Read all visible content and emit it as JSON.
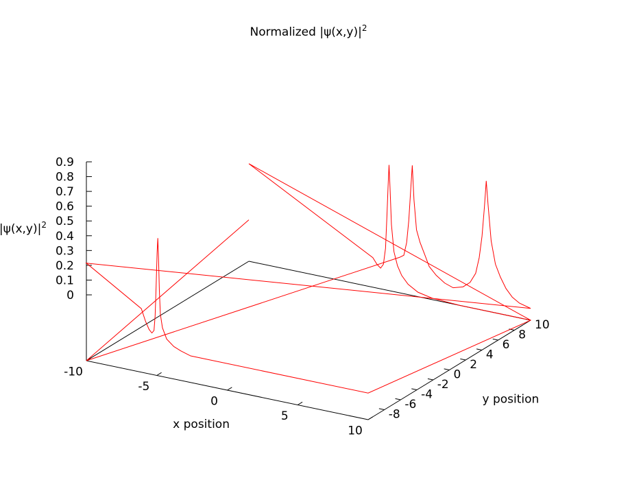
{
  "chart_data": {
    "type": "line",
    "title": {
      "main": "Normalized |ψ(x,y)|",
      "sup": "2"
    },
    "xlabel": "x position",
    "ylabel": "y position",
    "zlabel": {
      "main": "|ψ(x,y)|",
      "sup": "2"
    },
    "xlim": [
      -10,
      10
    ],
    "ylim": [
      -10,
      10
    ],
    "zlim": [
      0,
      0.9
    ],
    "x_ticks": [
      {
        "value": -10,
        "label": "-10"
      },
      {
        "value": -5,
        "label": "-5"
      },
      {
        "value": 0,
        "label": "0"
      },
      {
        "value": 5,
        "label": "5"
      },
      {
        "value": 10,
        "label": "10"
      }
    ],
    "y_ticks": [
      {
        "value": -8,
        "label": "-8"
      },
      {
        "value": -6,
        "label": "-6"
      },
      {
        "value": -4,
        "label": "-4"
      },
      {
        "value": -2,
        "label": "-2"
      },
      {
        "value": 0,
        "label": "0"
      },
      {
        "value": 2,
        "label": "2"
      },
      {
        "value": 4,
        "label": "4"
      },
      {
        "value": 6,
        "label": "6"
      },
      {
        "value": 8,
        "label": "8"
      },
      {
        "value": 10,
        "label": "10"
      }
    ],
    "z_ticks": [
      {
        "value": 0,
        "label": "0"
      },
      {
        "value": 0.1,
        "label": "0.1"
      },
      {
        "value": 0.2,
        "label": "0.2"
      },
      {
        "value": 0.3,
        "label": "0.3"
      },
      {
        "value": 0.4,
        "label": "0.4"
      },
      {
        "value": 0.5,
        "label": "0.5"
      },
      {
        "value": 0.6,
        "label": "0.6"
      },
      {
        "value": 0.7,
        "label": "0.7"
      },
      {
        "value": 0.8,
        "label": "0.8"
      },
      {
        "value": 0.9,
        "label": "0.9"
      }
    ],
    "grid": false,
    "series_color": "#ff0000",
    "series": [
      {
        "points": [
          [
            -10,
            10,
            0.28
          ],
          [
            -10,
            -10,
            0.0
          ],
          [
            0.7,
            10,
            0.24
          ],
          [
            1.0,
            10,
            0.26
          ],
          [
            1.2,
            10,
            0.35
          ],
          [
            1.35,
            10,
            0.5
          ],
          [
            1.48,
            10,
            0.7
          ],
          [
            1.6,
            10,
            0.88
          ],
          [
            1.72,
            10,
            0.65
          ],
          [
            1.9,
            10,
            0.45
          ],
          [
            2.15,
            10,
            0.37
          ],
          [
            2.5,
            10,
            0.29
          ],
          [
            2.8,
            10,
            0.22
          ],
          [
            3.3,
            10,
            0.17
          ],
          [
            3.9,
            10,
            0.13
          ],
          [
            4.5,
            10,
            0.11
          ],
          [
            5.2,
            10,
            0.13
          ],
          [
            5.7,
            10,
            0.17
          ],
          [
            6.1,
            10,
            0.24
          ],
          [
            6.35,
            10,
            0.35
          ],
          [
            6.55,
            10,
            0.5
          ],
          [
            6.72,
            10,
            0.7
          ],
          [
            6.85,
            10,
            0.88
          ],
          [
            6.98,
            10,
            0.72
          ],
          [
            7.2,
            10,
            0.48
          ],
          [
            7.5,
            10,
            0.33
          ],
          [
            7.85,
            10,
            0.25
          ],
          [
            8.25,
            10,
            0.18
          ],
          [
            8.7,
            10,
            0.13
          ],
          [
            9.2,
            10,
            0.1
          ],
          [
            10,
            10,
            0.08
          ],
          [
            -10,
            -10,
            0.66
          ],
          [
            -6.1,
            -10,
            0.43
          ],
          [
            -5.8,
            -10,
            0.35
          ],
          [
            -5.55,
            -10,
            0.3
          ],
          [
            -5.35,
            -10,
            0.28
          ],
          [
            -5.2,
            -10,
            0.3
          ],
          [
            -5.12,
            -10,
            0.4
          ],
          [
            -5.05,
            -10,
            0.6
          ],
          [
            -4.98,
            -10,
            0.83
          ],
          [
            -4.93,
            -10,
            0.93
          ],
          [
            -4.88,
            -10,
            0.8
          ],
          [
            -4.82,
            -10,
            0.58
          ],
          [
            -4.75,
            -10,
            0.42
          ],
          [
            -4.6,
            -10,
            0.33
          ],
          [
            -4.3,
            -10,
            0.26
          ],
          [
            -3.8,
            -10,
            0.22
          ],
          [
            -3.3,
            -10,
            0.2
          ],
          [
            -2.6,
            -10,
            0.18
          ],
          [
            10,
            -10,
            0.18
          ],
          [
            10,
            10,
            0.0
          ],
          [
            -10,
            10,
            0.66
          ],
          [
            -1.2,
            10,
            0.2
          ],
          [
            -0.9,
            10,
            0.16
          ],
          [
            -0.65,
            10,
            0.14
          ],
          [
            -0.45,
            10,
            0.17
          ],
          [
            -0.3,
            10,
            0.28
          ],
          [
            -0.2,
            10,
            0.5
          ],
          [
            -0.12,
            10,
            0.7
          ],
          [
            -0.05,
            10,
            0.85
          ],
          [
            0.02,
            10,
            0.7
          ],
          [
            0.12,
            10,
            0.45
          ],
          [
            0.3,
            10,
            0.27
          ],
          [
            0.55,
            10,
            0.18
          ],
          [
            0.85,
            10,
            0.12
          ],
          [
            1.3,
            10,
            0.07
          ],
          [
            2.0,
            10,
            0.03
          ],
          [
            3.0,
            10,
            0.01
          ],
          [
            5.0,
            10,
            0.0
          ],
          [
            10,
            10,
            0.0
          ]
        ]
      }
    ]
  }
}
